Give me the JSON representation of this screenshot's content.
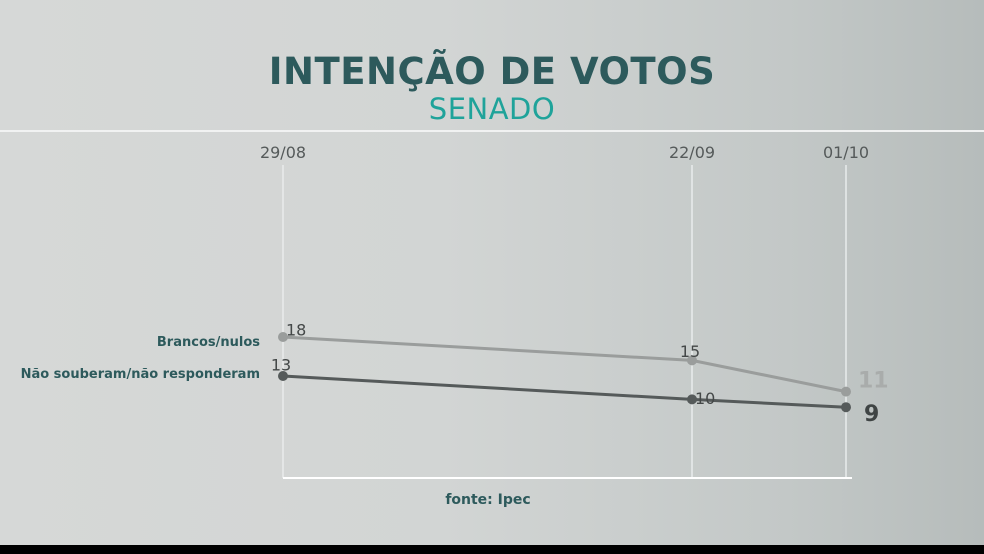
{
  "chart_data": {
    "type": "line",
    "title": "INTENÇÃO DE VOTOS",
    "subtitle": "SENADO",
    "x": [
      "29/08",
      "22/09",
      "01/10"
    ],
    "series": [
      {
        "name": "Brancos/nulos",
        "values": [
          18,
          15,
          11
        ],
        "color": "#9a9d9c",
        "label_color": "#a9acab"
      },
      {
        "name": "Não souberam/não responderam",
        "values": [
          13,
          10,
          9
        ],
        "color": "#555a5a",
        "label_color": "#3f4444"
      }
    ],
    "source": "fonte: Ipec",
    "series_label_color": "#2d5a5c",
    "legend": "left"
  }
}
